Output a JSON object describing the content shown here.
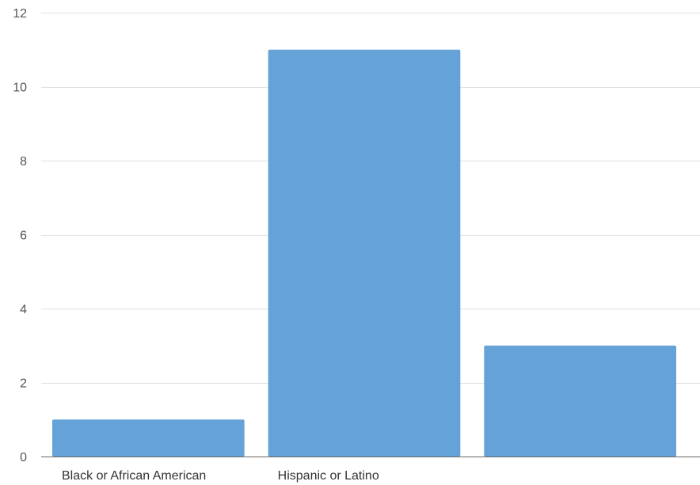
{
  "chart_data": {
    "type": "bar",
    "categories": [
      "Black or African American",
      "Hispanic or Latino",
      ""
    ],
    "values": [
      1,
      11,
      3
    ],
    "ylim": [
      0,
      12
    ],
    "yticks": [
      0,
      2,
      4,
      6,
      8,
      10,
      12
    ],
    "grid": true,
    "legend": "none",
    "bar_color": "#65a2d7",
    "title": "",
    "xlabel": "",
    "ylabel": ""
  }
}
